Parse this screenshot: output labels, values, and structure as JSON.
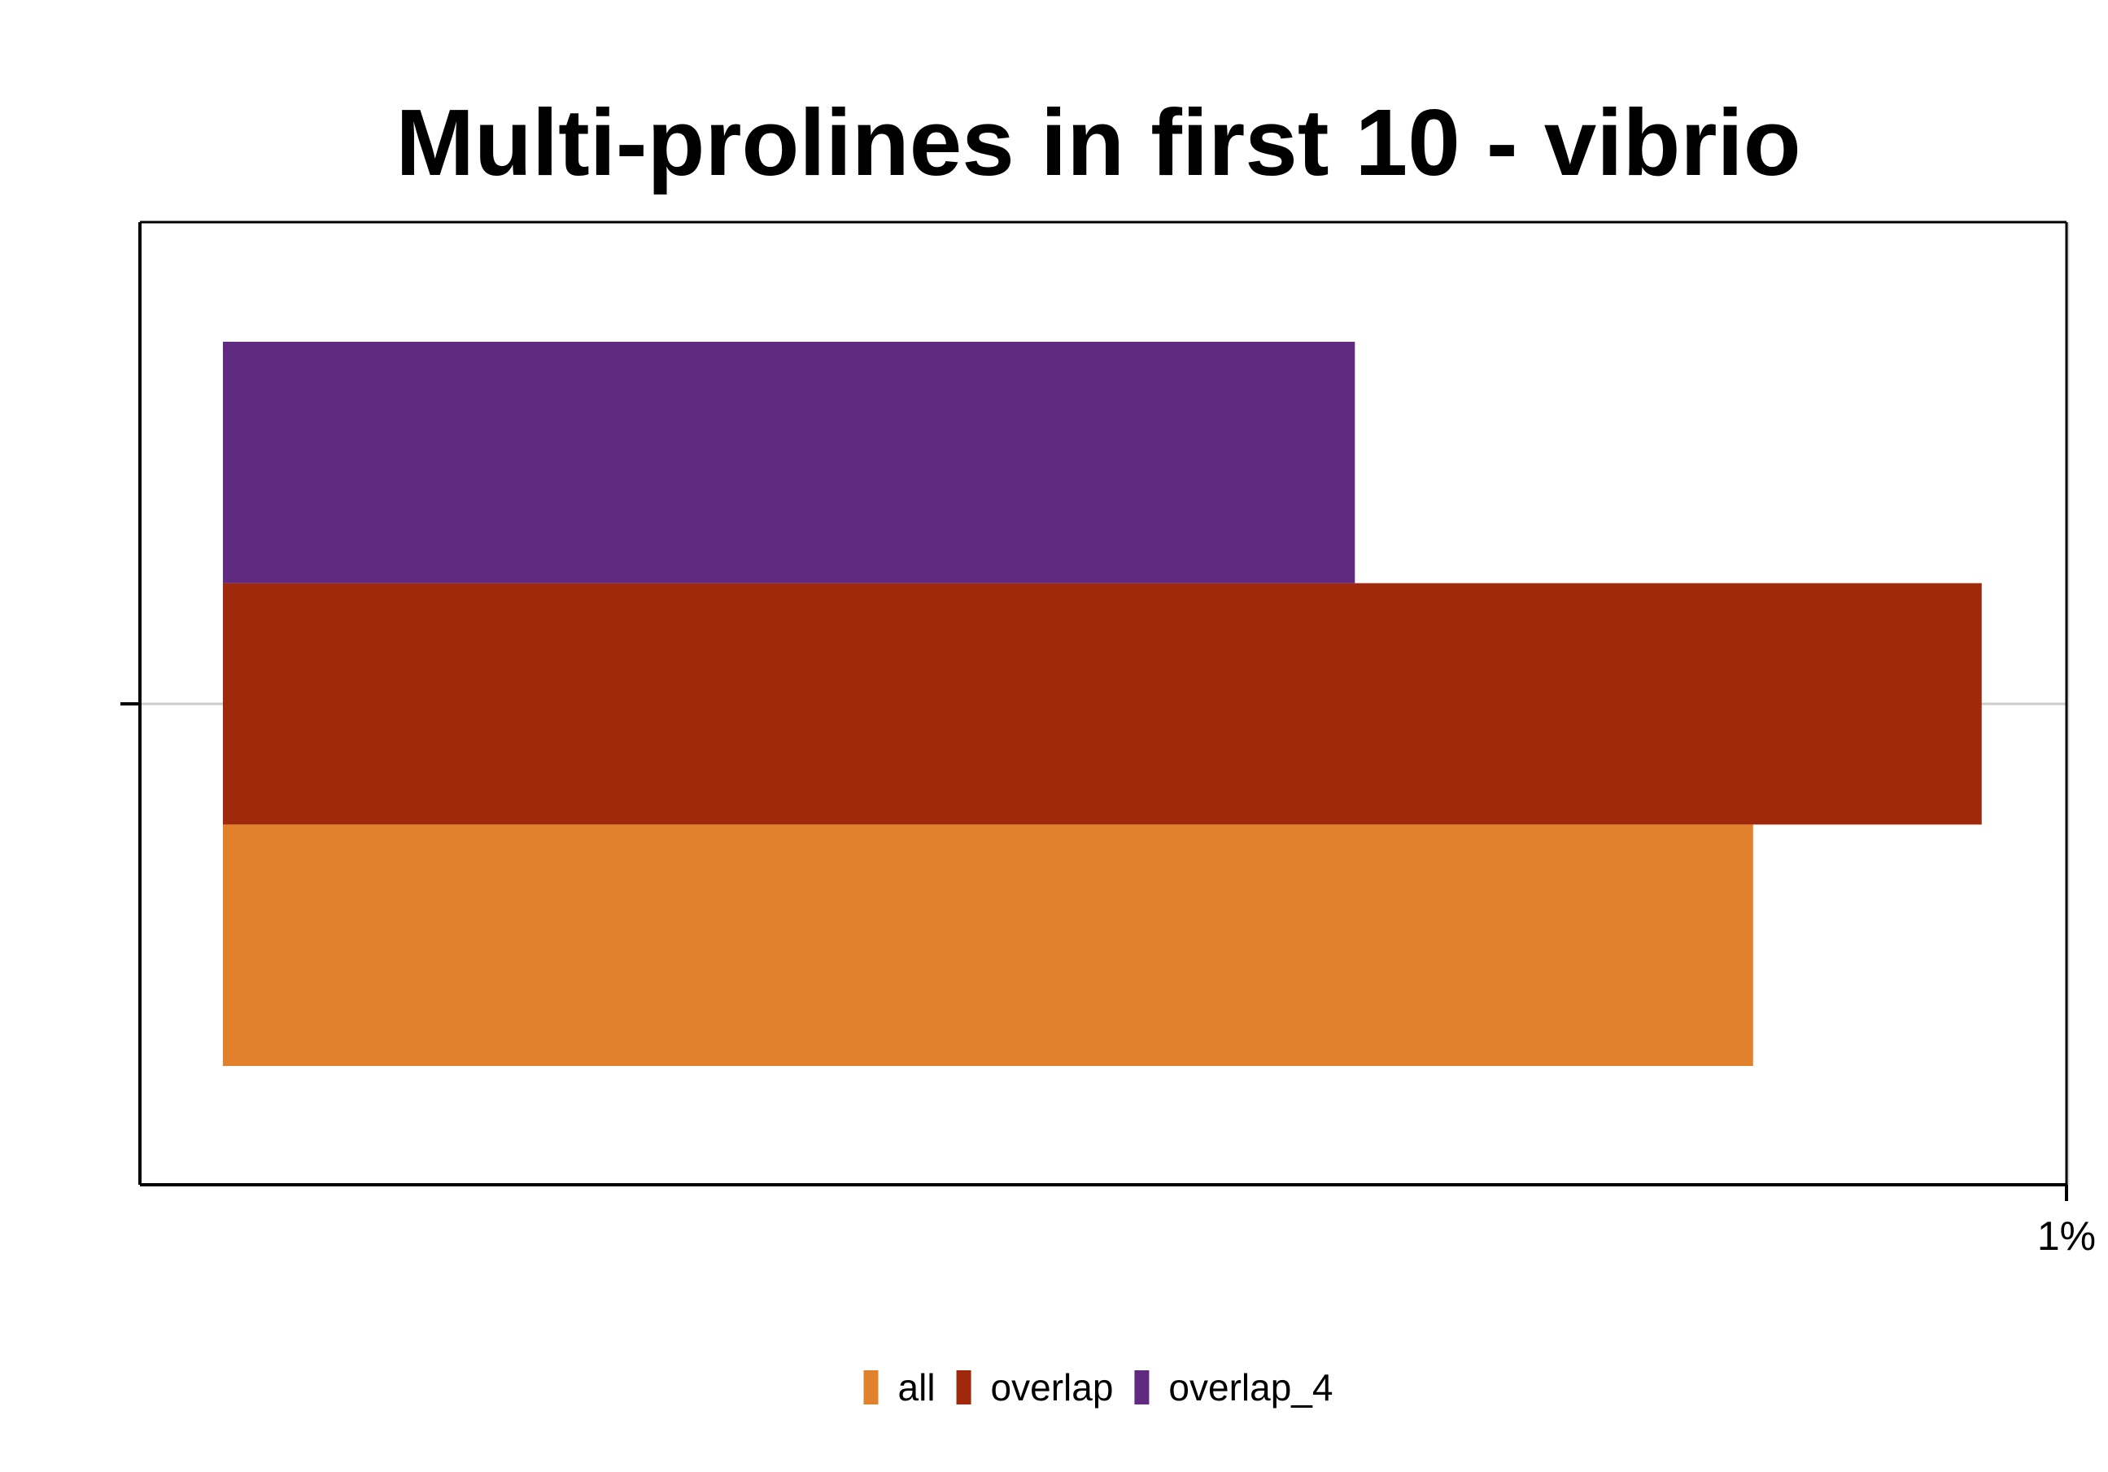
{
  "chart_data": {
    "type": "bar",
    "orientation": "horizontal",
    "title": "Multi-prolines in first 10 - vibrio",
    "xlabel": "",
    "ylabel": "",
    "categories": [
      ""
    ],
    "x_ticks": [
      {
        "value": 1.0,
        "label": "1%"
      }
    ],
    "xlim": [
      -0.045,
      1.0
    ],
    "series": [
      {
        "name": "all",
        "color": "#E1812B",
        "values": [
          0.83
        ]
      },
      {
        "name": "overlap",
        "color": "#A0290B",
        "values": [
          0.954
        ]
      },
      {
        "name": "overlap_4",
        "color": "#5F2A7F",
        "values": [
          0.614
        ]
      }
    ],
    "grid": {
      "horizontal_major": true
    },
    "legend": {
      "position": "bottom",
      "entries": [
        "all",
        "overlap",
        "overlap_4"
      ]
    }
  }
}
